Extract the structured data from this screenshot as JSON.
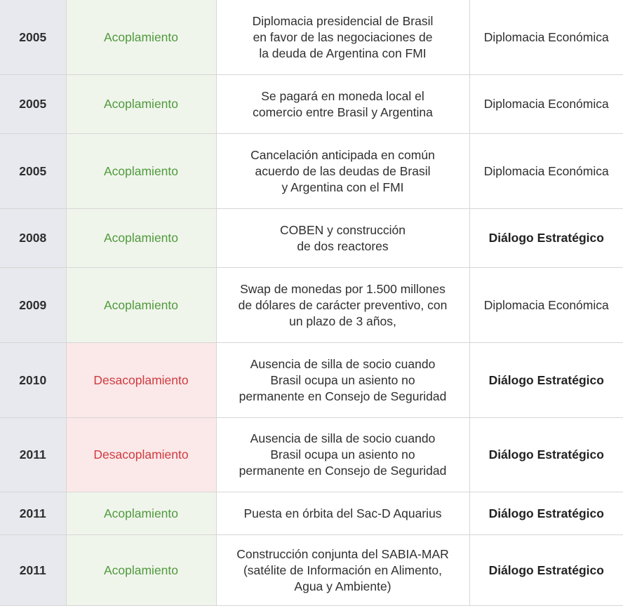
{
  "colors": {
    "year_bg": "#e8e9ee",
    "coupling_bg": "#f0f5ec",
    "coupling_text": "#4f9a3c",
    "decoupling_bg": "#fbe8e8",
    "decoupling_text": "#cf3b41",
    "border": "#d6d6d6"
  },
  "rows": [
    {
      "year": "2005",
      "status": "Acoplamiento",
      "status_kind": "coupled",
      "event": [
        "Diplomacia presidencial de Brasil",
        "en favor de las negociaciones de",
        "la deuda de Argentina con FMI"
      ],
      "category": "Diplomacia Económica",
      "category_bold": false
    },
    {
      "year": "2005",
      "status": "Acoplamiento",
      "status_kind": "coupled",
      "event": [
        "Se pagará en moneda local el",
        "comercio entre Brasil y Argentina"
      ],
      "category": "Diplomacia Económica",
      "category_bold": false
    },
    {
      "year": "2005",
      "status": "Acoplamiento",
      "status_kind": "coupled",
      "event": [
        "Cancelación anticipada en común",
        "acuerdo de las deudas de Brasil",
        "y Argentina con el FMI"
      ],
      "category": "Diplomacia Económica",
      "category_bold": false
    },
    {
      "year": "2008",
      "status": "Acoplamiento",
      "status_kind": "coupled",
      "event": [
        "COBEN y construcción",
        "de dos reactores"
      ],
      "category": "Diálogo Estratégico",
      "category_bold": true
    },
    {
      "year": "2009",
      "status": "Acoplamiento",
      "status_kind": "coupled",
      "event": [
        "Swap de monedas por 1.500 millones",
        "de dólares de carácter preventivo, con",
        "un plazo de 3 años,"
      ],
      "category": "Diplomacia Económica",
      "category_bold": false
    },
    {
      "year": "2010",
      "status": "Desacoplamiento",
      "status_kind": "decoupled",
      "event": [
        "Ausencia de silla de socio cuando",
        "Brasil ocupa un asiento no",
        "permanente en Consejo de Seguridad"
      ],
      "category": "Diálogo Estratégico",
      "category_bold": true
    },
    {
      "year": "2011",
      "status": "Desacoplamiento",
      "status_kind": "decoupled",
      "event": [
        "Ausencia de silla de socio cuando",
        "Brasil ocupa un asiento no",
        "permanente en Consejo de Seguridad"
      ],
      "category": "Diálogo Estratégico",
      "category_bold": true
    },
    {
      "year": "2011",
      "status": "Acoplamiento",
      "status_kind": "coupled",
      "event": [
        "Puesta en órbita del Sac-D Aquarius"
      ],
      "category": "Diálogo Estratégico",
      "category_bold": true
    },
    {
      "year": "2011",
      "status": "Acoplamiento",
      "status_kind": "coupled",
      "event": [
        "Construcción conjunta del SABIA-MAR",
        "(satélite de Información en Alimento,",
        "Agua y Ambiente)"
      ],
      "category": "Diálogo Estratégico",
      "category_bold": true
    }
  ]
}
